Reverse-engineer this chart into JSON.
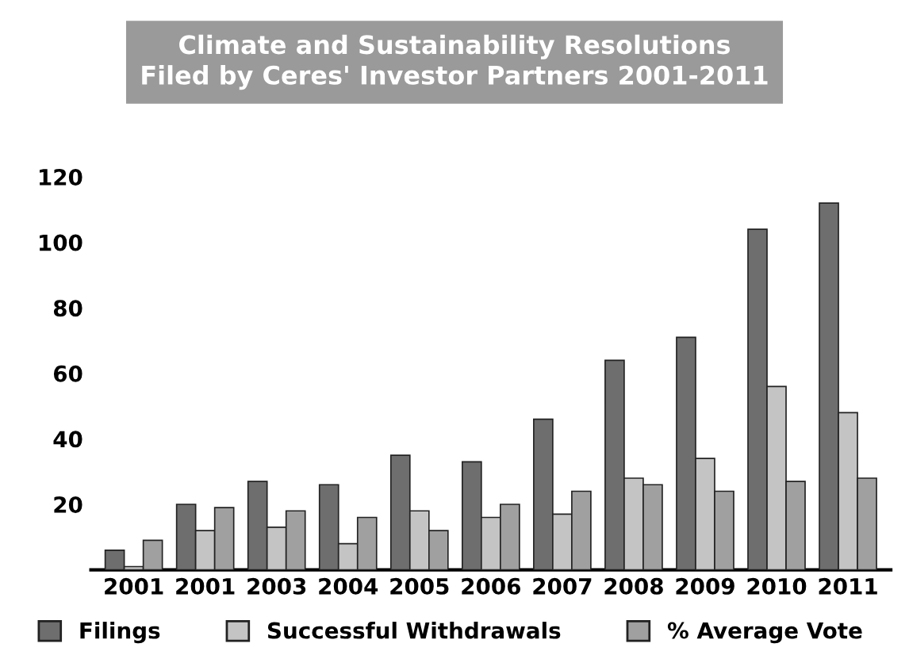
{
  "chart_data": {
    "type": "bar",
    "title": "Climate and Sustainability Resolutions\nFiled by Ceres' Investor Partners 2001-2011",
    "categories": [
      "2001",
      "2001",
      "2003",
      "2004",
      "2005",
      "2006",
      "2007",
      "2008",
      "2009",
      "2010",
      "2011"
    ],
    "series": [
      {
        "name": "Filings",
        "color": "#6e6e6e",
        "values": [
          6,
          20,
          27,
          26,
          35,
          33,
          46,
          64,
          71,
          104,
          112
        ]
      },
      {
        "name": "Successful Withdrawals",
        "color": "#c4c4c4",
        "values": [
          1,
          12,
          13,
          8,
          18,
          16,
          17,
          28,
          34,
          56,
          48
        ]
      },
      {
        "name": "% Average Vote",
        "color": "#a0a0a0",
        "values": [
          9,
          19,
          18,
          16,
          12,
          20,
          24,
          26,
          24,
          27,
          28
        ]
      }
    ],
    "ylim": [
      0,
      120
    ],
    "yticks": [
      20,
      40,
      60,
      80,
      100,
      120
    ],
    "grid": false,
    "legend": "bottom"
  }
}
